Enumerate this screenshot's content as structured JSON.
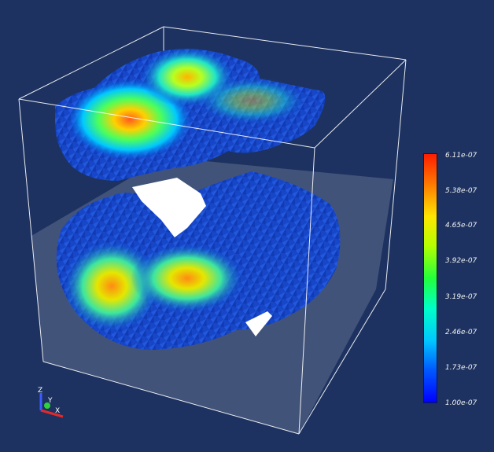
{
  "colors": {
    "background": "#1d3260",
    "bounding_box": "#ffffff",
    "ground_plane": "#8a93a8"
  },
  "colorbar": {
    "min": "1.00e-07",
    "max": "6.11e-07",
    "labels": [
      "6.11e-07",
      "5.38e-07",
      "4.65e-07",
      "3.92e-07",
      "3.19e-07",
      "2.46e-07",
      "1.73e-07",
      "1.00e-07"
    ],
    "colormap": [
      "#0000ff",
      "#0058ff",
      "#00c8ff",
      "#00ffc8",
      "#22ff3c",
      "#b4ff00",
      "#ffe600",
      "#ff7800",
      "#ff1e00"
    ]
  },
  "orientation_axes": {
    "x": "X",
    "y": "Y",
    "z": "Z"
  }
}
